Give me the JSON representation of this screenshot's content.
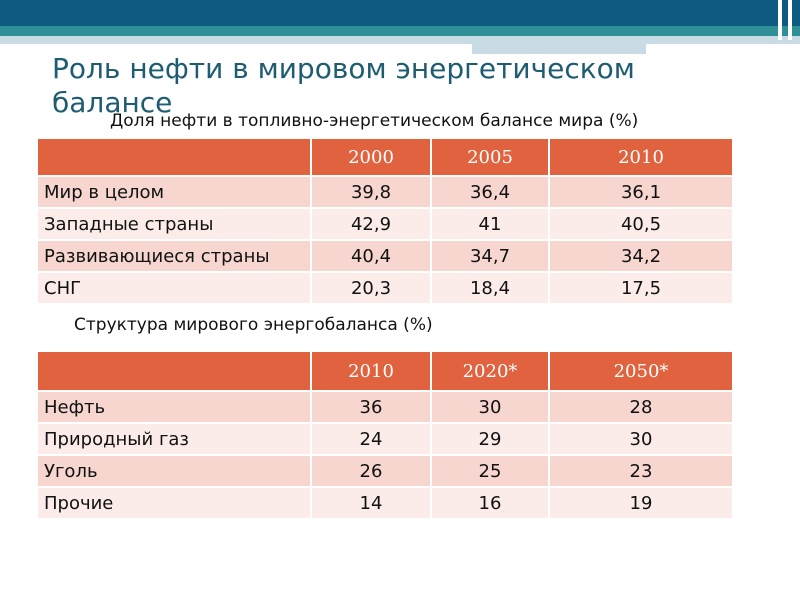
{
  "title": "Роль нефти в мировом энергетическом балансе",
  "table1": {
    "caption": "Доля нефти в топливно-энергетическом балансе мира (%)",
    "headers": [
      "",
      "2000",
      "2005",
      "2010"
    ],
    "rows": [
      [
        "Мир в целом",
        "39,8",
        "36,4",
        "36,1"
      ],
      [
        "Западные страны",
        "42,9",
        "41",
        "40,5"
      ],
      [
        "Развивающиеся страны",
        "40,4",
        "34,7",
        "34,2"
      ],
      [
        "СНГ",
        "20,3",
        "18,4",
        "17,5"
      ]
    ]
  },
  "table2": {
    "caption": "Структура мирового энергобаланса (%)",
    "headers": [
      "",
      "2010",
      "2020*",
      "2050*"
    ],
    "rows": [
      [
        "Нефть",
        "36",
        "30",
        "28"
      ],
      [
        "Природный газ",
        "24",
        "29",
        "30"
      ],
      [
        "Уголь",
        "26",
        "25",
        "23"
      ],
      [
        "Прочие",
        "14",
        "16",
        "19"
      ]
    ]
  },
  "colors": {
    "header": "#e0623f",
    "row_odd": "#f6d6cf",
    "row_even": "#fbecea",
    "title": "#1e5c72",
    "band_dark": "#0e5a80",
    "band_teal": "#2e8f96"
  }
}
